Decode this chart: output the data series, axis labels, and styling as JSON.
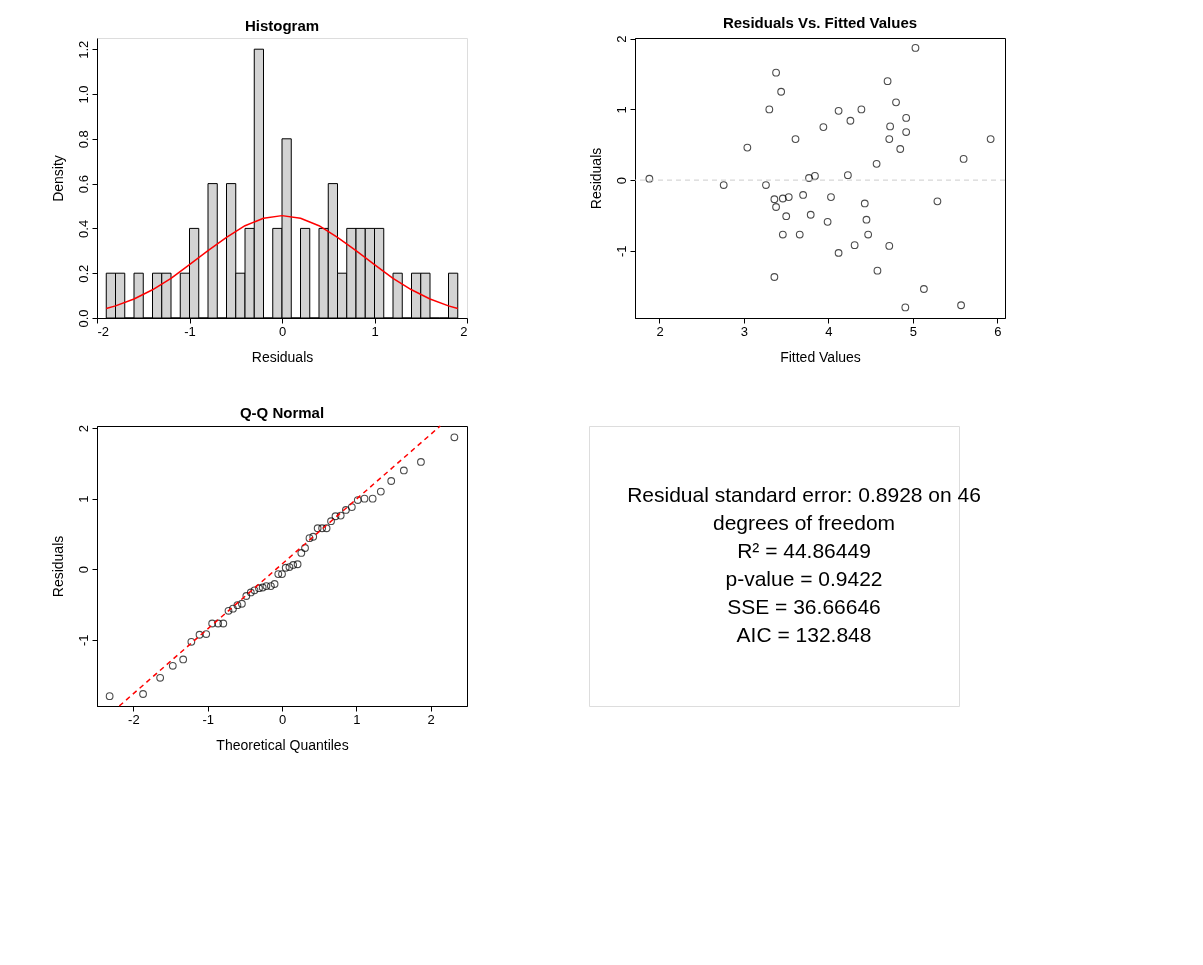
{
  "chart_data": [
    {
      "type": "histogram",
      "title": "Histogram",
      "xlabel": "Residuals",
      "ylabel": "Density",
      "xlim": [
        -2,
        2
      ],
      "xticks": [
        -2,
        -1,
        0,
        1,
        2
      ],
      "ylim": [
        0,
        1.25
      ],
      "yticks": [
        {
          "value": 0,
          "label": "0.0"
        },
        0.2,
        0.4,
        0.6,
        0.8,
        {
          "value": 1,
          "label": "1.0"
        },
        1.2
      ],
      "grid": false,
      "series": [
        {
          "type": "histogram",
          "color": "#d3d3d3",
          "bins": [
            -1.9,
            -1.8,
            -1.7,
            -1.6,
            -1.5,
            -1.4,
            -1.3,
            -1.2,
            -1.1,
            -1.0,
            -0.9,
            -0.8,
            -0.7,
            -0.6,
            -0.5,
            -0.4,
            -0.3,
            -0.2,
            -0.1,
            0.0,
            0.1,
            0.2,
            0.3,
            0.4,
            0.5,
            0.6,
            0.7,
            0.8,
            0.9,
            1.0,
            1.1,
            1.2,
            1.3,
            1.4,
            1.5,
            1.6,
            1.7,
            1.8,
            1.9
          ],
          "values": [
            0.2,
            0.2,
            0,
            0.2,
            0,
            0.2,
            0.2,
            0,
            0.2,
            0.4,
            0,
            0.6,
            0,
            0.6,
            0.2,
            0.4,
            1.2,
            0,
            0.4,
            0.8,
            0,
            0.4,
            0,
            0.4,
            0.6,
            0.2,
            0.4,
            0.4,
            0.4,
            0.4,
            0,
            0.2,
            0,
            0.2,
            0.2,
            0,
            0,
            0.2
          ]
        },
        {
          "type": "line",
          "color": "#ff0000",
          "x": [
            -1.9,
            -1.8,
            -1.6,
            -1.4,
            -1.2,
            -1.0,
            -0.8,
            -0.6,
            -0.4,
            -0.2,
            0,
            0.2,
            0.4,
            0.6,
            0.8,
            1.0,
            1.2,
            1.4,
            1.6,
            1.8,
            1.9
          ],
          "values": [
            0.042,
            0.054,
            0.085,
            0.126,
            0.177,
            0.238,
            0.301,
            0.36,
            0.412,
            0.445,
            0.457,
            0.445,
            0.412,
            0.36,
            0.301,
            0.238,
            0.177,
            0.126,
            0.085,
            0.054,
            0.042
          ]
        }
      ]
    },
    {
      "type": "scatter",
      "title": "Residuals Vs. Fitted Values",
      "xlabel": "Fitted Values",
      "ylabel": "Residuals",
      "xlim": [
        1.71,
        6.09
      ],
      "xticks": [
        2,
        3,
        4,
        5,
        6
      ],
      "ylim": [
        -1.95,
        2.01
      ],
      "yticks": [
        -1,
        0,
        1,
        2
      ],
      "grid": false,
      "marker": "circle",
      "ref_lines": [
        {
          "axis": "y",
          "value": 0,
          "color": "#cccccc",
          "line_style": "dashed"
        }
      ],
      "series": [
        {
          "color": "#000000",
          "x": [
            1.88,
            2.76,
            3.04,
            3.26,
            3.3,
            3.38,
            3.44,
            3.36,
            3.38,
            3.46,
            3.53,
            3.5,
            3.46,
            3.36,
            3.61,
            3.66,
            3.7,
            3.77,
            3.84,
            3.79,
            3.94,
            3.99,
            4.03,
            4.12,
            4.12,
            4.23,
            4.26,
            4.31,
            4.39,
            4.43,
            4.45,
            4.47,
            4.57,
            4.58,
            4.7,
            4.73,
            4.72,
            4.72,
            4.8,
            4.85,
            4.92,
            4.92,
            4.91,
            5.03,
            5.13,
            5.29,
            5.57,
            5.6,
            5.92
          ],
          "values": [
            0.02,
            -0.07,
            0.46,
            -0.07,
            1.0,
            1.52,
            1.25,
            -0.27,
            -0.38,
            -0.26,
            -0.24,
            -0.51,
            -0.77,
            -1.37,
            0.58,
            -0.77,
            -0.21,
            0.03,
            0.06,
            -0.49,
            0.75,
            -0.59,
            -0.24,
            0.98,
            -1.03,
            0.07,
            0.84,
            -0.92,
            1.0,
            -0.33,
            -0.56,
            -0.77,
            0.23,
            -1.28,
            1.4,
            0.76,
            0.58,
            -0.93,
            1.1,
            0.44,
            0.88,
            0.68,
            -1.8,
            1.87,
            -1.54,
            -0.3,
            -1.77,
            0.3,
            0.58
          ]
        }
      ]
    },
    {
      "type": "scatter",
      "title": "Q-Q Normal",
      "xlabel": "Theoretical Quantiles",
      "ylabel": "Residuals",
      "xlim": [
        -2.49,
        2.49
      ],
      "xticks": [
        -2,
        -1,
        0,
        1,
        2
      ],
      "ylim": [
        -1.94,
        2.03
      ],
      "yticks": [
        -1,
        0,
        1,
        2
      ],
      "grid": false,
      "marker": "circle",
      "series": [
        {
          "color": "#000000",
          "x": [
            -2.32,
            -1.87,
            -1.64,
            -1.47,
            -1.33,
            -1.22,
            -1.11,
            -1.02,
            -0.94,
            -0.86,
            -0.79,
            -0.72,
            -0.66,
            -0.6,
            -0.54,
            -0.48,
            -0.42,
            -0.37,
            -0.31,
            -0.26,
            -0.21,
            -0.15,
            -0.1,
            -0.05,
            0,
            0.05,
            0.1,
            0.15,
            0.21,
            0.26,
            0.31,
            0.37,
            0.42,
            0.48,
            0.54,
            0.6,
            0.66,
            0.72,
            0.79,
            0.86,
            0.94,
            1.02,
            1.11,
            1.22,
            1.33,
            1.47,
            1.64,
            1.87,
            2.32
          ],
          "values": [
            -1.8,
            -1.77,
            -1.54,
            -1.37,
            -1.28,
            -1.03,
            -0.93,
            -0.92,
            -0.77,
            -0.77,
            -0.77,
            -0.59,
            -0.56,
            -0.51,
            -0.49,
            -0.38,
            -0.33,
            -0.3,
            -0.27,
            -0.26,
            -0.24,
            -0.24,
            -0.21,
            -0.07,
            -0.07,
            0.02,
            0.03,
            0.06,
            0.07,
            0.23,
            0.3,
            0.44,
            0.46,
            0.58,
            0.58,
            0.58,
            0.68,
            0.75,
            0.76,
            0.84,
            0.88,
            0.98,
            1.0,
            1.0,
            1.1,
            1.25,
            1.4,
            1.52,
            1.87
          ]
        },
        {
          "type": "line",
          "color": "#ff0000",
          "line_style": "dashed",
          "marker": "none",
          "x": [
            -2.19,
            2.13
          ],
          "values": [
            -1.94,
            2.03
          ]
        }
      ]
    },
    {
      "type": "other",
      "annotations": [
        "Residual standard error: 0.8928 on 46 degrees of freedom",
        "R² = 44.86449",
        "p-value = 0.9422",
        "SSE = 36.66646",
        "AIC = 132.848"
      ]
    }
  ]
}
